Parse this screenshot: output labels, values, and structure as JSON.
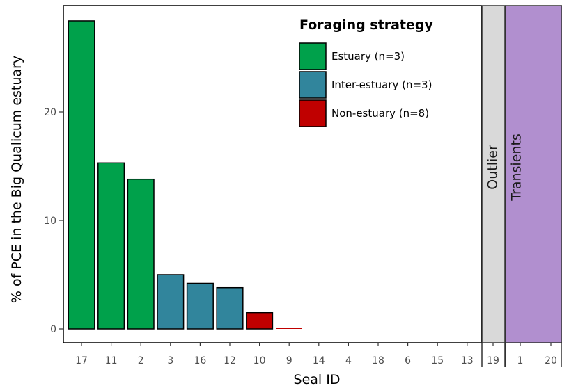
{
  "chart_data": {
    "type": "bar",
    "xlabel": "Seal ID",
    "ylabel": "% of PCE in the Big Qualicum estuary",
    "ylim": [
      0,
      29.3
    ],
    "yticks": [
      0,
      10,
      20
    ],
    "legend": {
      "title": "Foraging strategy",
      "placement": "top-right",
      "entries": [
        {
          "key": "estuary",
          "label": "Estuary (n=3)",
          "color": "#00A14B"
        },
        {
          "key": "inter",
          "label": "Inter-estuary (n=3)",
          "color": "#31859C"
        },
        {
          "key": "non",
          "label": "Non-estuary (n=8)",
          "color": "#C00000"
        }
      ]
    },
    "panels": [
      {
        "strip": "",
        "categories": [
          "17",
          "11",
          "2",
          "3",
          "16",
          "12",
          "10",
          "9",
          "14",
          "4",
          "18",
          "6",
          "15",
          "13"
        ],
        "values": [
          28.4,
          15.3,
          13.8,
          5.0,
          4.2,
          3.8,
          1.5,
          0.05,
          0,
          0,
          0,
          0,
          0,
          0
        ],
        "groups": [
          "estuary",
          "estuary",
          "estuary",
          "inter",
          "inter",
          "inter",
          "non",
          "non",
          "non",
          "non",
          "non",
          "non",
          "non",
          "non"
        ]
      },
      {
        "strip": "Outlier",
        "strip_color": "#D9D9D9",
        "categories": [
          "19"
        ],
        "values": [
          0
        ],
        "groups": [
          "outlier"
        ]
      },
      {
        "strip": "Transients",
        "strip_color": "#B18FCF",
        "categories": [
          "1",
          "20"
        ],
        "values": [
          0,
          0
        ],
        "groups": [
          "transient",
          "transient"
        ]
      }
    ]
  }
}
